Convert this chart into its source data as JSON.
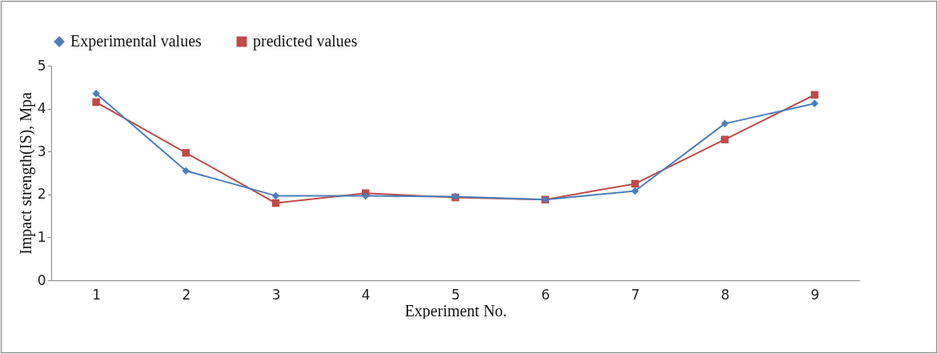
{
  "chart_data": {
    "type": "line",
    "xlabel": "Experiment No.",
    "ylabel": "Impact strength(IS), Mpa",
    "categories": [
      "1",
      "2",
      "3",
      "4",
      "5",
      "6",
      "7",
      "8",
      "9"
    ],
    "series": [
      {
        "name": "Experimental values",
        "color": "#4a7ebb",
        "marker": "diamond",
        "values": [
          4.35,
          2.55,
          1.97,
          1.97,
          1.95,
          1.88,
          2.08,
          3.65,
          4.12
        ]
      },
      {
        "name": "predicted values",
        "color": "#be4b48",
        "marker": "square",
        "values": [
          4.15,
          2.97,
          1.8,
          2.03,
          1.93,
          1.88,
          2.25,
          3.28,
          4.32
        ]
      }
    ],
    "ylim": [
      0,
      5
    ],
    "yticks": [
      0,
      1,
      2,
      3,
      4,
      5
    ],
    "grid": false,
    "legend": "top"
  }
}
